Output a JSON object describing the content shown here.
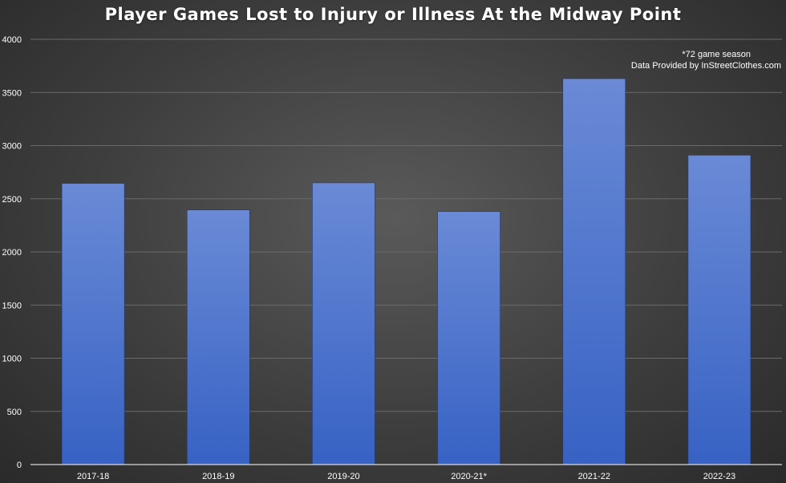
{
  "chart_data": {
    "type": "bar",
    "title": "Player Games Lost to Injury or Illness At the Midway Point",
    "categories": [
      "2017-18",
      "2018-19",
      "2019-20",
      "2020-21*",
      "2021-22",
      "2022-23"
    ],
    "values": [
      2645,
      2395,
      2650,
      2380,
      3630,
      2910
    ],
    "ylim": [
      0,
      4000
    ],
    "yticks": [
      "0",
      "500",
      "1000",
      "1500",
      "2000",
      "2500",
      "3000",
      "3500",
      "4000"
    ],
    "grid": true,
    "notes": [
      "*72 game season",
      "Data Provided by InStreetClothes.com"
    ],
    "colors": {
      "bar_top": "#6a8ad6",
      "bar_bottom": "#3762c4",
      "grid": "#6a6a6a",
      "axis": "#d8d8d8",
      "text": "#ffffff"
    }
  }
}
